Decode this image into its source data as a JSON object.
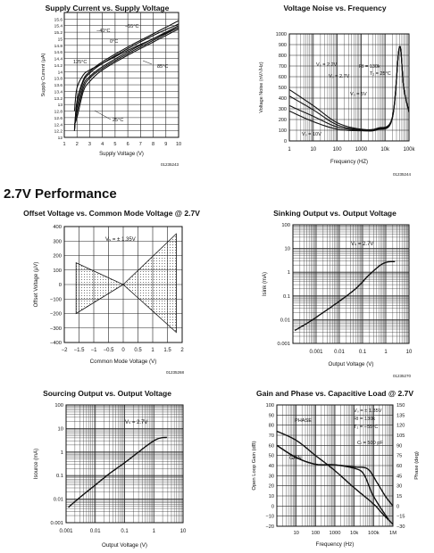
{
  "section_title": "2.7V Performance",
  "codes": [
    "01235243",
    "01235244",
    "01235268",
    "01235270",
    "01235270"
  ],
  "chart_data": [
    {
      "id": "supply-current",
      "type": "line",
      "title": "Supply Current vs. Supply Voltage",
      "xlabel": "Supply Voltage (V)",
      "ylabel": "Supply Current (μA)",
      "xlim": [
        1,
        10
      ],
      "ylim": [
        12,
        15.8
      ],
      "xticks": [
        "1",
        "2",
        "3",
        "4",
        "5",
        "6",
        "7",
        "8",
        "9",
        "10"
      ],
      "yticks": [
        "12",
        "12.2",
        "12.4",
        "12.6",
        "12.8",
        "13",
        "13.2",
        "13.4",
        "13.6",
        "13.8",
        "14",
        "14.2",
        "14.4",
        "14.6",
        "14.8",
        "15",
        "15.2",
        "15.4",
        "15.6"
      ],
      "annotations": [
        "−40°C",
        "−55°C",
        "0°C",
        "125°C",
        "85°C",
        "25°C"
      ],
      "series": [
        {
          "name": "−55°C",
          "x": [
            1.8,
            2,
            2.5,
            3,
            4,
            6,
            8,
            10
          ],
          "y": [
            12.2,
            13.1,
            13.75,
            14,
            14.3,
            14.75,
            15.15,
            15.55
          ]
        },
        {
          "name": "−40°C",
          "x": [
            1.8,
            2,
            2.5,
            3,
            4,
            6,
            8,
            10
          ],
          "y": [
            12.2,
            13.05,
            13.7,
            13.95,
            14.25,
            14.7,
            15.1,
            15.45
          ]
        },
        {
          "name": "0°C",
          "x": [
            1.8,
            2,
            2.5,
            3,
            4,
            6,
            8,
            10
          ],
          "y": [
            12.25,
            12.9,
            13.6,
            13.85,
            14.15,
            14.6,
            15,
            15.4
          ]
        },
        {
          "name": "25°C",
          "x": [
            1.8,
            2,
            2.5,
            3,
            4,
            6,
            8,
            10
          ],
          "y": [
            12.3,
            12.75,
            13.5,
            13.8,
            14.1,
            14.55,
            14.95,
            15.35
          ]
        },
        {
          "name": "85°C",
          "x": [
            1.8,
            2,
            2.5,
            3,
            4,
            6,
            8,
            10
          ],
          "y": [
            12.4,
            12.6,
            13.4,
            13.7,
            14.05,
            14.5,
            14.9,
            15.3
          ]
        },
        {
          "name": "125°C",
          "x": [
            1.8,
            2,
            2.5,
            3,
            4,
            6,
            8,
            10
          ],
          "y": [
            12.8,
            13.5,
            13.9,
            14.05,
            14.25,
            14.65,
            15,
            15.35
          ]
        }
      ]
    },
    {
      "id": "voltage-noise",
      "type": "line",
      "title": "Voltage Noise vs. Frequency",
      "xlabel": "Frequency (HZ)",
      "ylabel": "Voltage Noise (nV/√Hz)",
      "xlim": [
        1,
        100000
      ],
      "ylim": [
        0,
        1000
      ],
      "xscale": "log",
      "xticks": [
        "1",
        "10",
        "100",
        "1000",
        "10k",
        "100k"
      ],
      "yticks": [
        "0",
        "100",
        "200",
        "300",
        "400",
        "500",
        "600",
        "700",
        "800",
        "900",
        "1000"
      ],
      "annotations": [
        "RI = 130k",
        "T₁ = 25°C",
        "Vₛ = 2.2V",
        "Vₛ = 2.7V",
        "Vₛ = 5V",
        "Vₛ = 10V"
      ],
      "series": [
        {
          "name": "2.2V",
          "x": [
            1,
            10,
            100,
            1000,
            5000,
            20000,
            40000,
            60000,
            100000
          ],
          "y": [
            480,
            330,
            170,
            110,
            120,
            220,
            880,
            500,
            270
          ]
        },
        {
          "name": "2.7V",
          "x": [
            1,
            10,
            100,
            1000,
            5000,
            20000,
            40000,
            60000,
            100000
          ],
          "y": [
            420,
            290,
            150,
            105,
            115,
            215,
            880,
            500,
            270
          ]
        },
        {
          "name": "5V",
          "x": [
            1,
            10,
            100,
            1000,
            5000,
            20000,
            40000,
            60000,
            100000
          ],
          "y": [
            330,
            230,
            130,
            100,
            110,
            210,
            880,
            500,
            270
          ]
        },
        {
          "name": "10V",
          "x": [
            1,
            10,
            100,
            1000,
            5000,
            20000,
            40000,
            60000,
            100000
          ],
          "y": [
            280,
            180,
            110,
            95,
            105,
            205,
            880,
            500,
            270
          ]
        }
      ]
    },
    {
      "id": "offset-voltage",
      "type": "area",
      "title": "Offset Voltage vs. Common Mode Voltage @ 2.7V",
      "xlabel": "Common Mode Voltage (V)",
      "ylabel": "Offset Voltage (μV)",
      "xlim": [
        -2,
        2
      ],
      "ylim": [
        -400,
        400
      ],
      "xticks": [
        "−2",
        "−1.5",
        "−1",
        "−0.5",
        "0",
        "0.5",
        "1",
        "1.5",
        "2"
      ],
      "yticks": [
        "−400",
        "−300",
        "−200",
        "−100",
        "0",
        "100",
        "200",
        "300",
        "400"
      ],
      "annotations": [
        "Vₛ = ± 1.35V"
      ],
      "series": [
        {
          "name": "upper",
          "x": [
            -1.6,
            0,
            1.8
          ],
          "y": [
            150,
            0,
            350
          ]
        },
        {
          "name": "lower",
          "x": [
            -1.6,
            0,
            1.8
          ],
          "y": [
            -200,
            0,
            -330
          ]
        }
      ]
    },
    {
      "id": "sinking-output",
      "type": "line",
      "title": "Sinking Output vs. Output Voltage",
      "xlabel": "Output Voltage (V)",
      "ylabel": "Isink (mA)",
      "xscale": "log",
      "yscale": "log",
      "xlim": [
        0.0001,
        10
      ],
      "ylim": [
        0.001,
        100
      ],
      "xticks": [
        "0.001",
        "0.01",
        "0.1",
        "1",
        "10"
      ],
      "yticks": [
        "100",
        "10",
        "1",
        "0.1",
        "0.01",
        "0.001"
      ],
      "annotations": [
        "Vₛ = 2.7V"
      ],
      "series": [
        {
          "name": "Isink",
          "x": [
            0.00012,
            0.0005,
            0.002,
            0.01,
            0.05,
            0.2,
            0.6,
            1.2,
            2.5
          ],
          "y": [
            0.0035,
            0.008,
            0.02,
            0.06,
            0.2,
            0.8,
            2.0,
            2.7,
            2.8
          ]
        }
      ]
    },
    {
      "id": "sourcing-output",
      "type": "line",
      "title": "Sourcing Output vs. Output Voltage",
      "xlabel": "Output Voltage (V)",
      "ylabel": "Isource (mA)",
      "xscale": "log",
      "yscale": "log",
      "xlim": [
        0.001,
        10
      ],
      "ylim": [
        0.001,
        100
      ],
      "xticks": [
        "0.001",
        "0.01",
        "0.1",
        "1",
        "10"
      ],
      "yticks": [
        "100",
        "10",
        "1",
        "0.1",
        "0.01",
        "0.001"
      ],
      "annotations": [
        "Vₛ = 2.7V"
      ],
      "series": [
        {
          "name": "Isource",
          "x": [
            0.0012,
            0.003,
            0.01,
            0.03,
            0.1,
            0.3,
            0.8,
            1.5,
            2.8
          ],
          "y": [
            0.0045,
            0.012,
            0.04,
            0.12,
            0.35,
            1.0,
            2.5,
            3.8,
            4.2
          ]
        }
      ]
    },
    {
      "id": "gain-phase",
      "type": "line",
      "title": "Gain and Phase vs. Capacitive Load @ 2.7V",
      "xlabel": "Frequency (Hz)",
      "ylabel": "Open Loop Gain (dB)",
      "ylabel2": "Phase (deg)",
      "xscale": "log",
      "xlim": [
        1,
        1000000
      ],
      "ylim": [
        -20,
        100
      ],
      "y2lim": [
        -30,
        150
      ],
      "xticks": [
        "10",
        "100",
        "1000",
        "10k",
        "100k",
        "1M"
      ],
      "yticks": [
        "100",
        "90",
        "80",
        "70",
        "60",
        "50",
        "40",
        "30",
        "20",
        "10",
        "0",
        "−10",
        "−20"
      ],
      "y2ticks": [
        "150",
        "135",
        "120",
        "105",
        "90",
        "75",
        "60",
        "45",
        "30",
        "15",
        "0",
        "−15",
        "−30"
      ],
      "annotations": [
        "Vₛ = ± 1.35V",
        "RI = 130k",
        "T₁ = −55°C",
        "Cₗ = 500 pF",
        "PHASE",
        "GAIN"
      ],
      "series": [
        {
          "name": "gain",
          "x": [
            1,
            10,
            100,
            1000,
            10000,
            100000,
            300000,
            1000000
          ],
          "y": [
            74,
            65,
            50,
            35,
            18,
            2,
            -8,
            -18
          ]
        },
        {
          "name": "phase",
          "x": [
            1,
            10,
            100,
            1000,
            10000,
            50000,
            150000,
            400000,
            1000000
          ],
          "y": [
            90,
            72,
            62,
            61,
            58,
            55,
            35,
            15,
            0
          ]
        },
        {
          "name": "phase-500pF",
          "x": [
            1,
            10,
            100,
            1000,
            10000,
            30000,
            80000,
            200000,
            600000
          ],
          "y": [
            90,
            72,
            62,
            61,
            56,
            48,
            20,
            0,
            -20
          ]
        }
      ]
    }
  ]
}
